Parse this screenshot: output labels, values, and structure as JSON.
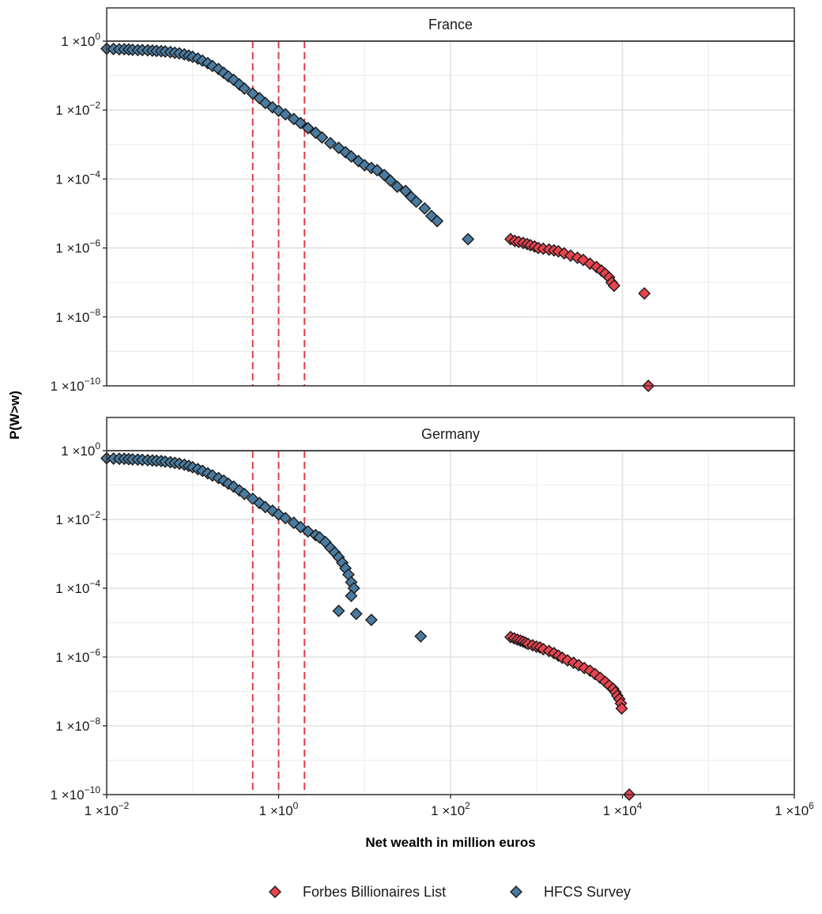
{
  "chart_data": {
    "type": "scatter",
    "xlabel": "Net wealth in million euros",
    "ylabel": "P(W>w)",
    "x_scale": "log10",
    "y_scale": "log10",
    "xlim": [
      0.01,
      1000000
    ],
    "ylim": [
      1e-10,
      1
    ],
    "grid": true,
    "legend_position": "bottom",
    "x_ticks": [
      {
        "mantissa": "1 ×10",
        "exp": "−2"
      },
      {
        "mantissa": "1 ×10",
        "exp": "0"
      },
      {
        "mantissa": "1 ×10",
        "exp": "2"
      },
      {
        "mantissa": "1 ×10",
        "exp": "4"
      },
      {
        "mantissa": "1 ×10",
        "exp": "6"
      }
    ],
    "y_ticks": [
      {
        "mantissa": "1 ×10",
        "exp": "0"
      },
      {
        "mantissa": "1 ×10",
        "exp": "−2"
      },
      {
        "mantissa": "1 ×10",
        "exp": "−4"
      },
      {
        "mantissa": "1 ×10",
        "exp": "−6"
      },
      {
        "mantissa": "1 ×10",
        "exp": "−8"
      },
      {
        "mantissa": "1 ×10",
        "exp": "−10"
      }
    ],
    "reference_lines_x": [
      0.5,
      1,
      2
    ],
    "reference_line_color": "#e03c4a",
    "series_meta": [
      {
        "name": "Forbes Billionaires List",
        "color": "#e8434f"
      },
      {
        "name": "HFCS Survey",
        "color": "#4a7ba0"
      }
    ],
    "panels": [
      {
        "strip": "France",
        "series": [
          {
            "name": "HFCS Survey",
            "points": [
              [
                0.01,
                0.6
              ],
              [
                0.012,
                0.59
              ],
              [
                0.014,
                0.58
              ],
              [
                0.016,
                0.58
              ],
              [
                0.018,
                0.57
              ],
              [
                0.02,
                0.56
              ],
              [
                0.023,
                0.55
              ],
              [
                0.026,
                0.55
              ],
              [
                0.03,
                0.54
              ],
              [
                0.034,
                0.53
              ],
              [
                0.038,
                0.52
              ],
              [
                0.043,
                0.51
              ],
              [
                0.048,
                0.5
              ],
              [
                0.055,
                0.48
              ],
              [
                0.062,
                0.46
              ],
              [
                0.07,
                0.44
              ],
              [
                0.08,
                0.41
              ],
              [
                0.09,
                0.38
              ],
              [
                0.1,
                0.35
              ],
              [
                0.115,
                0.31
              ],
              [
                0.13,
                0.27
              ],
              [
                0.15,
                0.23
              ],
              [
                0.17,
                0.19
              ],
              [
                0.2,
                0.155
              ],
              [
                0.23,
                0.12
              ],
              [
                0.26,
                0.095
              ],
              [
                0.3,
                0.075
              ],
              [
                0.35,
                0.055
              ],
              [
                0.4,
                0.042
              ],
              [
                0.5,
                0.03
              ],
              [
                0.6,
                0.022
              ],
              [
                0.7,
                0.016
              ],
              [
                0.85,
                0.012
              ],
              [
                1.0,
                0.0095
              ],
              [
                1.2,
                0.0075
              ],
              [
                1.5,
                0.0055
              ],
              [
                1.8,
                0.0042
              ],
              [
                2.2,
                0.003
              ],
              [
                2.7,
                0.0022
              ],
              [
                3.2,
                0.0016
              ],
              [
                4.0,
                0.0011
              ],
              [
                5.0,
                0.0008
              ],
              [
                6.0,
                0.0006
              ],
              [
                7.0,
                0.00045
              ],
              [
                8.5,
                0.00033
              ],
              [
                10,
                0.00025
              ],
              [
                12,
                0.00021
              ],
              [
                14,
                0.00018
              ],
              [
                17,
                0.00013
              ],
              [
                20,
                9e-05
              ],
              [
                24,
                6e-05
              ],
              [
                30,
                4.5e-05
              ],
              [
                35,
                3e-05
              ],
              [
                40,
                2.2e-05
              ],
              [
                50,
                1.4e-05
              ],
              [
                60,
                8.5e-06
              ],
              [
                70,
                6e-06
              ],
              [
                160,
                1.8e-06
              ]
            ]
          },
          {
            "name": "Forbes Billionaires List",
            "points": [
              [
                500,
                1.8e-06
              ],
              [
                560,
                1.6e-06
              ],
              [
                620,
                1.5e-06
              ],
              [
                700,
                1.4e-06
              ],
              [
                780,
                1.3e-06
              ],
              [
                850,
                1.2e-06
              ],
              [
                950,
                1.1e-06
              ],
              [
                1050,
                1e-06
              ],
              [
                1200,
                9.5e-07
              ],
              [
                1400,
                9e-07
              ],
              [
                1600,
                8.5e-07
              ],
              [
                1800,
                8e-07
              ],
              [
                2100,
                7e-07
              ],
              [
                2500,
                6e-07
              ],
              [
                3000,
                5.2e-07
              ],
              [
                3500,
                4.5e-07
              ],
              [
                4200,
                3.5e-07
              ],
              [
                5000,
                2.8e-07
              ],
              [
                5700,
                2.2e-07
              ],
              [
                6300,
                1.8e-07
              ],
              [
                7000,
                1.4e-07
              ],
              [
                7500,
                1e-07
              ],
              [
                8000,
                8e-08
              ],
              [
                18000,
                4.8e-08
              ],
              [
                20000,
                1e-10
              ]
            ]
          }
        ]
      },
      {
        "strip": "Germany",
        "series": [
          {
            "name": "HFCS Survey",
            "points": [
              [
                0.01,
                0.6
              ],
              [
                0.012,
                0.59
              ],
              [
                0.014,
                0.58
              ],
              [
                0.016,
                0.58
              ],
              [
                0.018,
                0.57
              ],
              [
                0.02,
                0.56
              ],
              [
                0.023,
                0.55
              ],
              [
                0.026,
                0.54
              ],
              [
                0.03,
                0.53
              ],
              [
                0.034,
                0.52
              ],
              [
                0.038,
                0.51
              ],
              [
                0.043,
                0.5
              ],
              [
                0.048,
                0.48
              ],
              [
                0.055,
                0.46
              ],
              [
                0.062,
                0.44
              ],
              [
                0.07,
                0.42
              ],
              [
                0.08,
                0.39
              ],
              [
                0.09,
                0.36
              ],
              [
                0.1,
                0.33
              ],
              [
                0.115,
                0.29
              ],
              [
                0.13,
                0.26
              ],
              [
                0.15,
                0.22
              ],
              [
                0.17,
                0.19
              ],
              [
                0.2,
                0.16
              ],
              [
                0.23,
                0.135
              ],
              [
                0.26,
                0.11
              ],
              [
                0.3,
                0.09
              ],
              [
                0.35,
                0.07
              ],
              [
                0.4,
                0.055
              ],
              [
                0.5,
                0.04
              ],
              [
                0.6,
                0.03
              ],
              [
                0.7,
                0.023
              ],
              [
                0.85,
                0.018
              ],
              [
                1.0,
                0.014
              ],
              [
                1.2,
                0.011
              ],
              [
                1.5,
                0.008
              ],
              [
                1.8,
                0.006
              ],
              [
                2.2,
                0.0045
              ],
              [
                2.7,
                0.0035
              ],
              [
                3.0,
                0.003
              ],
              [
                3.5,
                0.0022
              ],
              [
                4.0,
                0.0015
              ],
              [
                4.5,
                0.0011
              ],
              [
                5.0,
                0.0008
              ],
              [
                5.5,
                0.00055
              ],
              [
                6.0,
                0.00038
              ],
              [
                6.5,
                0.00025
              ],
              [
                7.0,
                0.00015
              ],
              [
                7.5,
                0.0001
              ],
              [
                7.0,
                6e-05
              ],
              [
                5.0,
                2.2e-05
              ],
              [
                8.0,
                1.8e-05
              ],
              [
                12,
                1.2e-05
              ],
              [
                45,
                4e-06
              ]
            ]
          },
          {
            "name": "Forbes Billionaires List",
            "points": [
              [
                500,
                3.8e-06
              ],
              [
                550,
                3.5e-06
              ],
              [
                600,
                3.2e-06
              ],
              [
                650,
                3e-06
              ],
              [
                700,
                2.8e-06
              ],
              [
                750,
                2.6e-06
              ],
              [
                800,
                2.4e-06
              ],
              [
                900,
                2.2e-06
              ],
              [
                1000,
                2e-06
              ],
              [
                1100,
                1.9e-06
              ],
              [
                1200,
                1.7e-06
              ],
              [
                1400,
                1.5e-06
              ],
              [
                1600,
                1.3e-06
              ],
              [
                1800,
                1.1e-06
              ],
              [
                2000,
                9.5e-07
              ],
              [
                2300,
                8e-07
              ],
              [
                2700,
                6.8e-07
              ],
              [
                3100,
                5.8e-07
              ],
              [
                3600,
                4.8e-07
              ],
              [
                4200,
                4e-07
              ],
              [
                4800,
                3.2e-07
              ],
              [
                5500,
                2.5e-07
              ],
              [
                6300,
                1.9e-07
              ],
              [
                7000,
                1.5e-07
              ],
              [
                7800,
                1.2e-07
              ],
              [
                8300,
                9.5e-08
              ],
              [
                8700,
                7.5e-08
              ],
              [
                9200,
                6e-08
              ],
              [
                9600,
                4.5e-08
              ],
              [
                9800,
                3.2e-08
              ],
              [
                12000,
                1e-10
              ]
            ]
          }
        ]
      }
    ]
  }
}
